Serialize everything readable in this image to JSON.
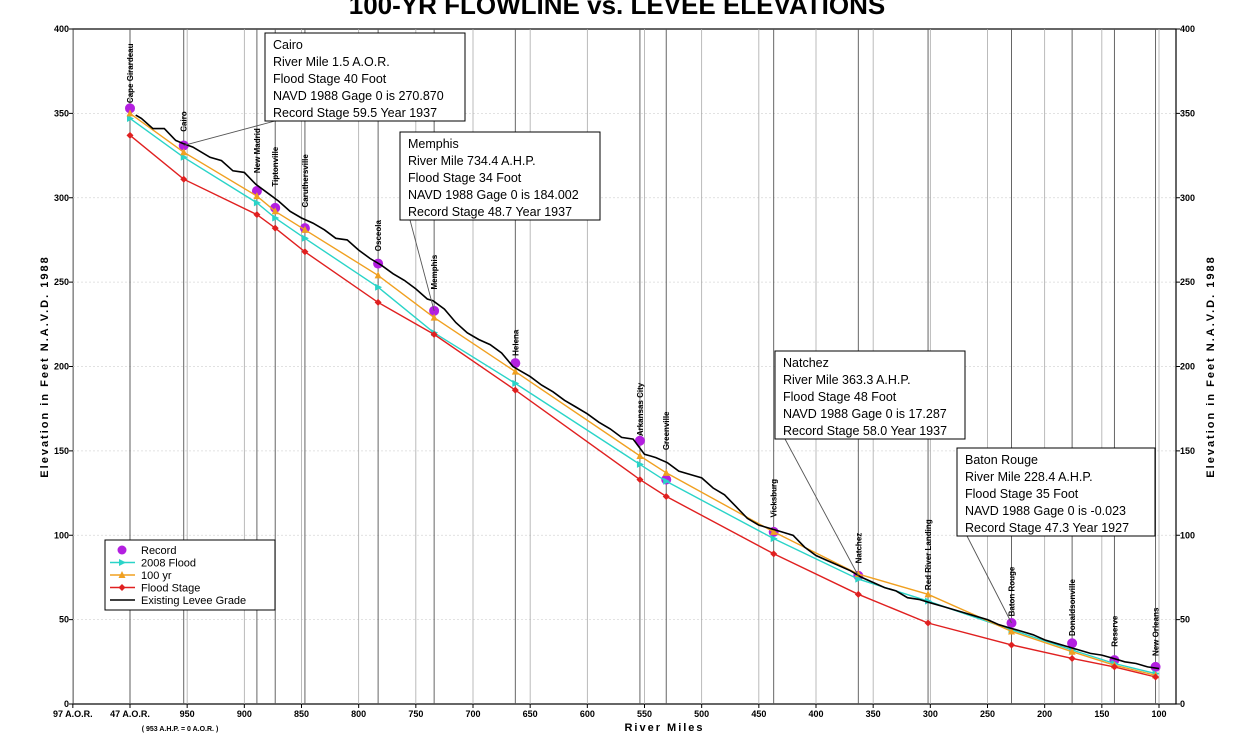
{
  "chart_data": {
    "type": "line",
    "title": "100-YR FLOWLINE vs. LEVEE ELEVATIONS",
    "xlabel": "River Miles",
    "ylabel": "Elevation in Feet N.A.V.D. 1988",
    "ylabel_right": "Elevation in Feet N.A.V.D. 1988",
    "ylim": [
      0,
      400
    ],
    "xlim": [
      1050,
      100
    ],
    "x_tick_labels": [
      "97 A.O.R.",
      "47 A.O.R.",
      "950",
      "900",
      "850",
      "800",
      "750",
      "700",
      "650",
      "600",
      "550",
      "500",
      "450",
      "400",
      "350",
      "300",
      "250",
      "200",
      "150",
      "100"
    ],
    "x_tick_positions": [
      1050,
      1000,
      950,
      900,
      850,
      800,
      750,
      700,
      650,
      600,
      550,
      500,
      450,
      400,
      350,
      300,
      250,
      200,
      150,
      100
    ],
    "x_note": "( 953 A.H.P. = 0 A.O.R. )",
    "y_ticks": [
      0,
      50,
      100,
      150,
      200,
      250,
      300,
      350,
      400
    ],
    "grid": "vertical",
    "city_lines": [
      {
        "name": "Cape Girardeau",
        "x": 1000
      },
      {
        "name": "Cairo",
        "x": 953
      },
      {
        "name": "New Madrid",
        "x": 889
      },
      {
        "name": "Tiptonville",
        "x": 873
      },
      {
        "name": "Caruthersville",
        "x": 847
      },
      {
        "name": "Osceola",
        "x": 783
      },
      {
        "name": "Memphis",
        "x": 734
      },
      {
        "name": "Helena",
        "x": 663
      },
      {
        "name": "Arkansas City",
        "x": 554
      },
      {
        "name": "Greenville",
        "x": 531
      },
      {
        "name": "Vicksburg",
        "x": 437
      },
      {
        "name": "Natchez",
        "x": 363
      },
      {
        "name": "Red River Landing",
        "x": 302
      },
      {
        "name": "Baton Rouge",
        "x": 229
      },
      {
        "name": "Donaldsonville",
        "x": 176
      },
      {
        "name": "Reserve",
        "x": 139
      },
      {
        "name": "New Orleans",
        "x": 103
      }
    ],
    "series": [
      {
        "name": "Record",
        "color": "#b31fe0",
        "marker": "circle",
        "x": [
          1000,
          953,
          889,
          873,
          847,
          783,
          734,
          663,
          554,
          531,
          437,
          363,
          229,
          176,
          139,
          103
        ],
        "y": [
          353,
          331,
          304,
          294,
          282,
          261,
          233,
          202,
          156,
          133,
          102,
          76,
          48,
          36,
          26,
          22
        ]
      },
      {
        "name": "2008 Flood",
        "color": "#2ad4c8",
        "marker": "triangle-right",
        "x": [
          1000,
          953,
          889,
          873,
          847,
          783,
          734,
          663,
          554,
          531,
          437,
          363,
          302,
          229,
          176,
          139,
          103
        ],
        "y": [
          347,
          324,
          297,
          288,
          276,
          247,
          220,
          190,
          142,
          132,
          98,
          74,
          61,
          44,
          32,
          24,
          18
        ]
      },
      {
        "name": "100 yr",
        "color": "#f0a020",
        "marker": "triangle-up",
        "x": [
          1000,
          953,
          889,
          873,
          847,
          783,
          734,
          663,
          554,
          531,
          437,
          363,
          302,
          229,
          176,
          139,
          103
        ],
        "y": [
          350,
          327,
          301,
          292,
          281,
          254,
          229,
          197,
          147,
          137,
          102,
          77,
          65,
          43,
          31,
          23,
          17
        ]
      },
      {
        "name": "Flood Stage",
        "color": "#e02020",
        "marker": "diamond",
        "x": [
          1000,
          953,
          889,
          873,
          847,
          783,
          734,
          663,
          554,
          531,
          437,
          363,
          302,
          229,
          176,
          139,
          103
        ],
        "y": [
          337,
          311,
          290,
          282,
          268,
          238,
          219,
          186,
          133,
          123,
          89,
          65,
          48,
          35,
          27,
          22,
          16
        ]
      },
      {
        "name": "Existing Levee Grade",
        "color": "#000000",
        "marker": "none",
        "x": [
          995,
          990,
          980,
          970,
          960,
          953,
          945,
          930,
          920,
          910,
          900,
          890,
          880,
          870,
          860,
          850,
          840,
          830,
          820,
          810,
          800,
          790,
          780,
          770,
          760,
          750,
          740,
          735,
          725,
          715,
          705,
          695,
          685,
          675,
          665,
          660,
          650,
          640,
          630,
          620,
          610,
          600,
          590,
          580,
          570,
          560,
          550,
          545,
          540,
          530,
          520,
          510,
          500,
          490,
          480,
          470,
          460,
          450,
          440,
          430,
          420,
          410,
          400,
          390,
          380,
          370,
          360,
          350,
          340,
          330,
          320,
          310,
          300,
          290,
          280,
          270,
          260,
          250,
          240,
          230,
          220,
          210,
          200,
          190,
          180,
          170,
          160,
          150,
          140,
          130,
          120,
          110,
          100
        ],
        "y": [
          349,
          347,
          341,
          341,
          334,
          332,
          330,
          324,
          322,
          316,
          315,
          308,
          303,
          298,
          292,
          288,
          285,
          281,
          276,
          275,
          269,
          264,
          260,
          255,
          251,
          246,
          240,
          239,
          234,
          226,
          220,
          216,
          213,
          208,
          200,
          198,
          194,
          189,
          185,
          180,
          176,
          172,
          167,
          163,
          158,
          157,
          148,
          147,
          146,
          143,
          138,
          136,
          134,
          128,
          124,
          117,
          110,
          106,
          104,
          102,
          100,
          93,
          88,
          85,
          82,
          79,
          75,
          72,
          69,
          67,
          63,
          62,
          60,
          58,
          56,
          54,
          52,
          50,
          47,
          45,
          43,
          41,
          38,
          36,
          34,
          32,
          30,
          29,
          27,
          25,
          24,
          22,
          21
        ]
      }
    ],
    "annotations": [
      {
        "name": "cairo",
        "x": 953,
        "y": 331,
        "lines": [
          "Cairo",
          "River Mile 1.5  A.O.R.",
          "Flood Stage 40 Foot",
          "NAVD 1988 Gage 0 is 270.870",
          "Record Stage 59.5 Year 1937"
        ]
      },
      {
        "name": "memphis",
        "x": 734,
        "y": 233,
        "lines": [
          "Memphis",
          "River Mile 734.4 A.H.P.",
          "Flood Stage 34 Foot",
          "NAVD 1988 Gage 0 is 184.002",
          "Record Stage 48.7 Year 1937"
        ]
      },
      {
        "name": "natchez",
        "x": 363,
        "y": 76,
        "lines": [
          "Natchez",
          "River Mile 363.3 A.H.P.",
          "Flood Stage 48 Foot",
          "NAVD 1988 Gage 0 is 17.287",
          "Record Stage 58.0 Year 1937"
        ]
      },
      {
        "name": "baton-rouge",
        "x": 229,
        "y": 48,
        "lines": [
          "Baton Rouge",
          "River Mile 228.4 A.H.P.",
          "Flood Stage 35 Foot",
          "NAVD 1988 Gage 0 is -0.023",
          "Record Stage 47.3 Year 1927"
        ]
      }
    ],
    "legend": {
      "placement": "bottom-left",
      "entries": [
        "Record",
        "2008 Flood",
        "100 yr",
        "Flood Stage",
        "Existing Levee Grade"
      ]
    }
  }
}
